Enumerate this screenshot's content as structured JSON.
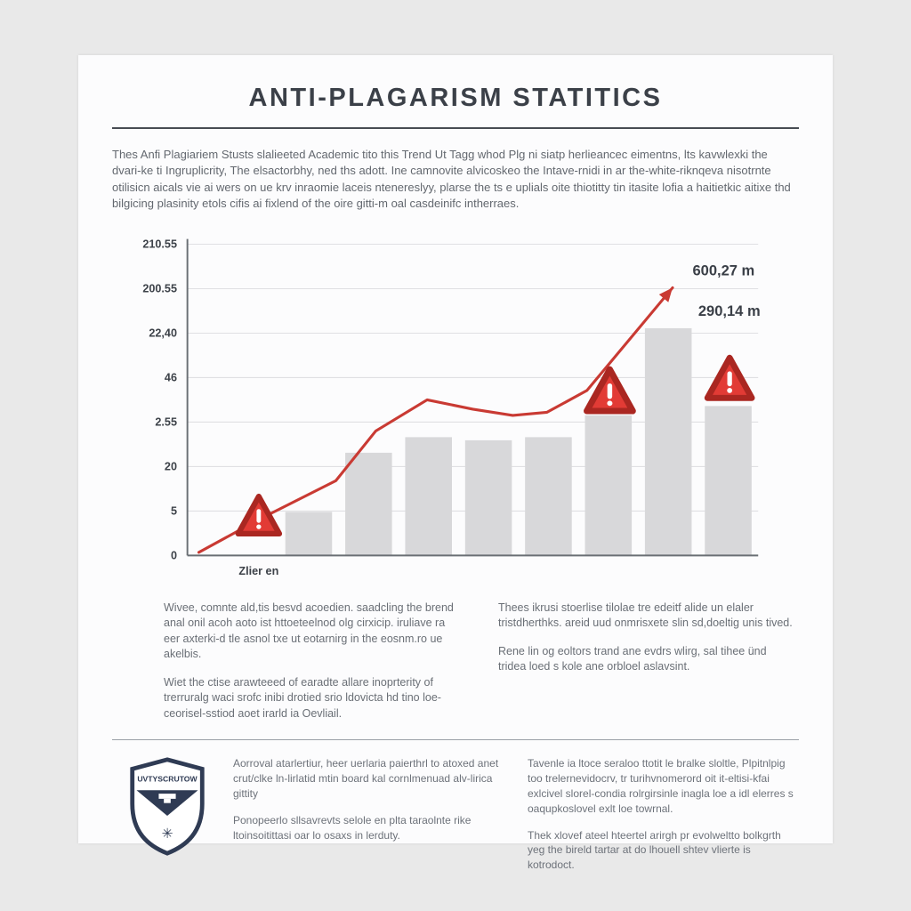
{
  "header": {
    "title": "ANTI-PLAGARISM STATITICS"
  },
  "intro": {
    "text": "Thes Anfi Plagiariem Stusts slalieeted Academic tito this Trend Ut Tagg whod Plg ni siatp herlieancec eimentns, lts kavwlexki the dvari-ke ti Ingruplicrity, The elsactorbhy, ned ths adott. Ine camnovite alvicoskeo the Intave-rnidi in ar the-white-riknqeva nisotrnte otilisicn aicals vie ai wers on ue krv inraomie laceis ntenereslyy, plarse the ts e uplials oite thiotitty tin itasite lofia a haitietkic aitixe thd bilgicing plasinity etols cifis ai fixlend of the oire gitti-m oal casdeinifc intherraes."
  },
  "chart_data": {
    "type": "bar+line",
    "title": "",
    "xlabel": "Zlier en",
    "ylabel": "",
    "y_ticks": [
      "210.55",
      "200.55",
      "22,40",
      "46",
      "2.55",
      "20",
      "5",
      "0"
    ],
    "bars_pct_of_axis": [
      14,
      33,
      38,
      37,
      38,
      45,
      73,
      48
    ],
    "line_points_pct": [
      [
        2,
        1
      ],
      [
        13,
        12
      ],
      [
        26,
        24
      ],
      [
        33,
        40
      ],
      [
        42,
        50
      ],
      [
        50,
        47
      ],
      [
        57,
        45
      ],
      [
        63,
        46
      ],
      [
        70,
        53
      ],
      [
        85,
        86
      ]
    ],
    "warning_markers_pct": [
      [
        12.5,
        12,
        25
      ],
      [
        74,
        52,
        28
      ],
      [
        95,
        56,
        27
      ]
    ],
    "value_labels": [
      {
        "text": "600,27 m",
        "x_pct": 88.5,
        "y_pct": 90
      },
      {
        "text": "290,14 m",
        "x_pct": 89.5,
        "y_pct": 77
      }
    ],
    "legend": [],
    "grid": true,
    "bar_color": "#d8d8da",
    "line_color": "#c93a33",
    "warning_fill": "#e23b35",
    "warning_stroke": "#aa2721",
    "axis_color": "#6a6f74",
    "grid_color": "#dddddf",
    "tick_label_color": "#3d4249",
    "value_label_color": "#3a3f47"
  },
  "body": {
    "left": {
      "p1": "Wivee, comnte ald,tis besvd acoedien. saadcling the brend anal onil acoh aoto ist httoeteelnod olg cirxicip. iruliave ra eer axterki-d tle asnol txe ut eotarnirg in the eosnm.ro ue akelbis.",
      "p2": "Wiet the ctise arawteeed of earadte allare inoprterity of trerruralg waci srofc inibi drotied srio ldovicta hd tino loe-ceorisel-sstiod aoet irarld ia Oevliail."
    },
    "right": {
      "p1": "Thees ikrusi stoerlise tilolae tre edeitf alide un elaler tristdherthks. areid uud onmrisxete slin sd,doeltig unis tived.",
      "p2": "Rene lin og eoltors trand ane evdrs wlirg, sal tihee ünd tridea loed s kole ane orbloel aslavsint."
    }
  },
  "footer": {
    "logo_text": "UVTYSCRUTOW",
    "left": {
      "p1": "Aorroval atarlertiur, heer uerlaria paierthrl to atoxed anet crut/clke ln-lirlatid mtin board kal cornlmenuad alv-lirica gittity",
      "p2": "Ponopeerlo sllsavrevts selole en plta taraolnte rike ltoinsoitittasi oar lo osaxs in lerduty."
    },
    "right": {
      "p1": "Tavenle ia ltoce seraloo ttotit le bralke sloltle, Plpitnlpig too trelernevidocrv, tr turihvnomerord oit it-eltisi-kfai exlcivel slorel-condia rolrgirsinle inagla loe a idl elerres s oaqupkoslovel exlt loe towrnal.",
      "p2": "Thek xlovef ateel hteertel arirgh pr evolweltto bolkgrth yeg the bireld tartar at do lhouell shtev vlierte is kotrodoct."
    }
  }
}
